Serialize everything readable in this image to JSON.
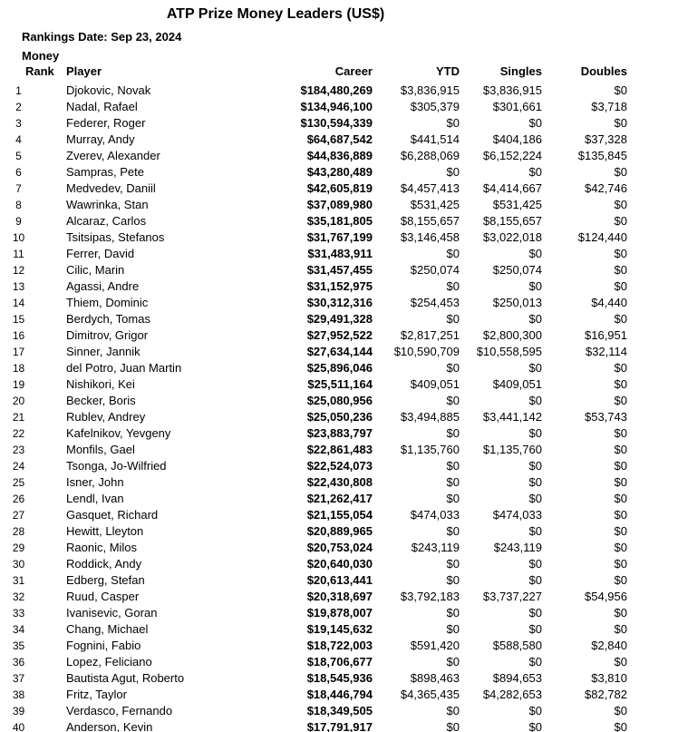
{
  "page": {
    "title": "ATP Prize Money Leaders (US$)",
    "rankings_date": "Rankings Date: Sep 23, 2024"
  },
  "colors": {
    "text": "#000000",
    "background": "#ffffff"
  },
  "table": {
    "headers": {
      "rank_line1": "Money",
      "rank_line2": "Rank",
      "player": "Player",
      "career": "Career",
      "ytd": "YTD",
      "singles": "Singles",
      "doubles": "Doubles"
    },
    "rows": [
      {
        "rank": "1",
        "player": "Djokovic, Novak",
        "career": "$184,480,269",
        "ytd": "$3,836,915",
        "singles": "$3,836,915",
        "doubles": "$0"
      },
      {
        "rank": "2",
        "player": "Nadal, Rafael",
        "career": "$134,946,100",
        "ytd": "$305,379",
        "singles": "$301,661",
        "doubles": "$3,718"
      },
      {
        "rank": "3",
        "player": "Federer, Roger",
        "career": "$130,594,339",
        "ytd": "$0",
        "singles": "$0",
        "doubles": "$0"
      },
      {
        "rank": "4",
        "player": "Murray, Andy",
        "career": "$64,687,542",
        "ytd": "$441,514",
        "singles": "$404,186",
        "doubles": "$37,328"
      },
      {
        "rank": "5",
        "player": "Zverev, Alexander",
        "career": "$44,836,889",
        "ytd": "$6,288,069",
        "singles": "$6,152,224",
        "doubles": "$135,845"
      },
      {
        "rank": "6",
        "player": "Sampras, Pete",
        "career": "$43,280,489",
        "ytd": "$0",
        "singles": "$0",
        "doubles": "$0"
      },
      {
        "rank": "7",
        "player": "Medvedev, Daniil",
        "career": "$42,605,819",
        "ytd": "$4,457,413",
        "singles": "$4,414,667",
        "doubles": "$42,746"
      },
      {
        "rank": "8",
        "player": "Wawrinka, Stan",
        "career": "$37,089,980",
        "ytd": "$531,425",
        "singles": "$531,425",
        "doubles": "$0"
      },
      {
        "rank": "9",
        "player": "Alcaraz, Carlos",
        "career": "$35,181,805",
        "ytd": "$8,155,657",
        "singles": "$8,155,657",
        "doubles": "$0"
      },
      {
        "rank": "10",
        "player": "Tsitsipas, Stefanos",
        "career": "$31,767,199",
        "ytd": "$3,146,458",
        "singles": "$3,022,018",
        "doubles": "$124,440"
      },
      {
        "rank": "11",
        "player": "Ferrer, David",
        "career": "$31,483,911",
        "ytd": "$0",
        "singles": "$0",
        "doubles": "$0"
      },
      {
        "rank": "12",
        "player": "Cilic, Marin",
        "career": "$31,457,455",
        "ytd": "$250,074",
        "singles": "$250,074",
        "doubles": "$0"
      },
      {
        "rank": "13",
        "player": "Agassi, Andre",
        "career": "$31,152,975",
        "ytd": "$0",
        "singles": "$0",
        "doubles": "$0"
      },
      {
        "rank": "14",
        "player": "Thiem, Dominic",
        "career": "$30,312,316",
        "ytd": "$254,453",
        "singles": "$250,013",
        "doubles": "$4,440"
      },
      {
        "rank": "15",
        "player": "Berdych, Tomas",
        "career": "$29,491,328",
        "ytd": "$0",
        "singles": "$0",
        "doubles": "$0"
      },
      {
        "rank": "16",
        "player": "Dimitrov, Grigor",
        "career": "$27,952,522",
        "ytd": "$2,817,251",
        "singles": "$2,800,300",
        "doubles": "$16,951"
      },
      {
        "rank": "17",
        "player": "Sinner, Jannik",
        "career": "$27,634,144",
        "ytd": "$10,590,709",
        "singles": "$10,558,595",
        "doubles": "$32,114"
      },
      {
        "rank": "18",
        "player": "del Potro, Juan Martin",
        "career": "$25,896,046",
        "ytd": "$0",
        "singles": "$0",
        "doubles": "$0"
      },
      {
        "rank": "19",
        "player": "Nishikori, Kei",
        "career": "$25,511,164",
        "ytd": "$409,051",
        "singles": "$409,051",
        "doubles": "$0"
      },
      {
        "rank": "20",
        "player": "Becker, Boris",
        "career": "$25,080,956",
        "ytd": "$0",
        "singles": "$0",
        "doubles": "$0"
      },
      {
        "rank": "21",
        "player": "Rublev, Andrey",
        "career": "$25,050,236",
        "ytd": "$3,494,885",
        "singles": "$3,441,142",
        "doubles": "$53,743"
      },
      {
        "rank": "22",
        "player": "Kafelnikov, Yevgeny",
        "career": "$23,883,797",
        "ytd": "$0",
        "singles": "$0",
        "doubles": "$0"
      },
      {
        "rank": "23",
        "player": "Monfils, Gael",
        "career": "$22,861,483",
        "ytd": "$1,135,760",
        "singles": "$1,135,760",
        "doubles": "$0"
      },
      {
        "rank": "24",
        "player": "Tsonga, Jo-Wilfried",
        "career": "$22,524,073",
        "ytd": "$0",
        "singles": "$0",
        "doubles": "$0"
      },
      {
        "rank": "25",
        "player": "Isner, John",
        "career": "$22,430,808",
        "ytd": "$0",
        "singles": "$0",
        "doubles": "$0"
      },
      {
        "rank": "26",
        "player": "Lendl, Ivan",
        "career": "$21,262,417",
        "ytd": "$0",
        "singles": "$0",
        "doubles": "$0"
      },
      {
        "rank": "27",
        "player": "Gasquet, Richard",
        "career": "$21,155,054",
        "ytd": "$474,033",
        "singles": "$474,033",
        "doubles": "$0"
      },
      {
        "rank": "28",
        "player": "Hewitt, Lleyton",
        "career": "$20,889,965",
        "ytd": "$0",
        "singles": "$0",
        "doubles": "$0"
      },
      {
        "rank": "29",
        "player": "Raonic, Milos",
        "career": "$20,753,024",
        "ytd": "$243,119",
        "singles": "$243,119",
        "doubles": "$0"
      },
      {
        "rank": "30",
        "player": "Roddick, Andy",
        "career": "$20,640,030",
        "ytd": "$0",
        "singles": "$0",
        "doubles": "$0"
      },
      {
        "rank": "31",
        "player": "Edberg, Stefan",
        "career": "$20,613,441",
        "ytd": "$0",
        "singles": "$0",
        "doubles": "$0"
      },
      {
        "rank": "32",
        "player": "Ruud, Casper",
        "career": "$20,318,697",
        "ytd": "$3,792,183",
        "singles": "$3,737,227",
        "doubles": "$54,956"
      },
      {
        "rank": "33",
        "player": "Ivanisevic, Goran",
        "career": "$19,878,007",
        "ytd": "$0",
        "singles": "$0",
        "doubles": "$0"
      },
      {
        "rank": "34",
        "player": "Chang, Michael",
        "career": "$19,145,632",
        "ytd": "$0",
        "singles": "$0",
        "doubles": "$0"
      },
      {
        "rank": "35",
        "player": "Fognini, Fabio",
        "career": "$18,722,003",
        "ytd": "$591,420",
        "singles": "$588,580",
        "doubles": "$2,840"
      },
      {
        "rank": "36",
        "player": "Lopez, Feliciano",
        "career": "$18,706,677",
        "ytd": "$0",
        "singles": "$0",
        "doubles": "$0"
      },
      {
        "rank": "37",
        "player": "Bautista Agut, Roberto",
        "career": "$18,545,936",
        "ytd": "$898,463",
        "singles": "$894,653",
        "doubles": "$3,810"
      },
      {
        "rank": "38",
        "player": "Fritz, Taylor",
        "career": "$18,446,794",
        "ytd": "$4,365,435",
        "singles": "$4,282,653",
        "doubles": "$82,782"
      },
      {
        "rank": "39",
        "player": "Verdasco, Fernando",
        "career": "$18,349,505",
        "ytd": "$0",
        "singles": "$0",
        "doubles": "$0"
      },
      {
        "rank": "40",
        "player": "Anderson, Kevin",
        "career": "$17,791,917",
        "ytd": "$0",
        "singles": "$0",
        "doubles": "$0"
      }
    ]
  }
}
